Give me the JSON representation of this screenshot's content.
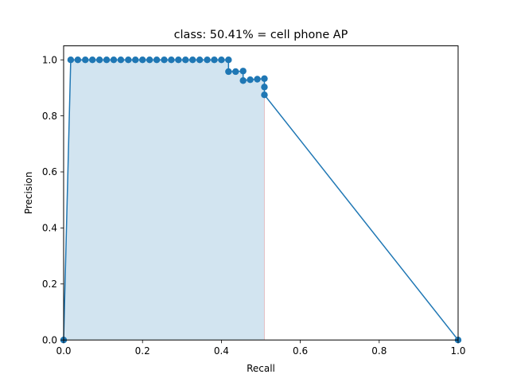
{
  "chart_data": {
    "type": "line",
    "title": "class: 50.41% = cell phone AP",
    "xlabel": "Recall",
    "ylabel": "Precision",
    "xlim": [
      0.0,
      1.0
    ],
    "ylim": [
      0.0,
      1.05
    ],
    "xticks": [
      "0.0",
      "0.2",
      "0.4",
      "0.6",
      "0.8",
      "1.0"
    ],
    "yticks": [
      "0.0",
      "0.2",
      "0.4",
      "0.6",
      "0.8",
      "1.0"
    ],
    "grid": false,
    "series_color": "#1f77b4",
    "fill_color": "#1f77b4",
    "fill_opacity": 0.2,
    "fill_edge_color": "#d62728",
    "series": [
      {
        "marker": "o",
        "x": [
          0.0,
          0.018,
          0.036,
          0.055,
          0.073,
          0.091,
          0.109,
          0.127,
          0.145,
          0.164,
          0.182,
          0.2,
          0.218,
          0.236,
          0.255,
          0.273,
          0.291,
          0.309,
          0.327,
          0.345,
          0.364,
          0.382,
          0.4,
          0.418,
          0.418,
          0.436,
          0.455,
          0.455,
          0.473,
          0.491,
          0.509,
          0.509,
          0.509,
          1.0
        ],
        "y": [
          0.0,
          1.0,
          1.0,
          1.0,
          1.0,
          1.0,
          1.0,
          1.0,
          1.0,
          1.0,
          1.0,
          1.0,
          1.0,
          1.0,
          1.0,
          1.0,
          1.0,
          1.0,
          1.0,
          1.0,
          1.0,
          1.0,
          1.0,
          1.0,
          0.958,
          0.958,
          0.96,
          0.926,
          0.929,
          0.931,
          0.933,
          0.903,
          0.875,
          0.0
        ]
      }
    ],
    "fill": {
      "x": [
        0.0,
        0.018,
        0.418,
        0.418,
        0.436,
        0.455,
        0.455,
        0.509,
        0.509
      ],
      "y": [
        0.0,
        1.0,
        1.0,
        0.96,
        0.96,
        0.96,
        0.933,
        0.933,
        0.875
      ]
    }
  }
}
